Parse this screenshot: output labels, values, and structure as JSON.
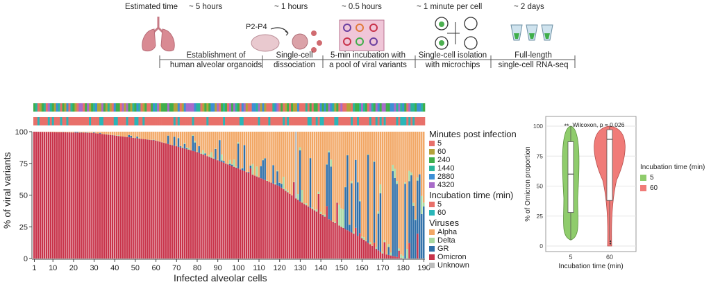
{
  "pipeline": {
    "steps": [
      {
        "time": "Estimated time",
        "label1": "",
        "label2": "",
        "icon": "lungs-icon"
      },
      {
        "time": "~ 5 hours",
        "label1": "Establishment of",
        "label2": "human alveolar organoids",
        "icon": ""
      },
      {
        "time": "~ 1 hours",
        "label1": "Single-cell",
        "label2": "dissociation",
        "icon": "cell-dish-icon",
        "extra": "P2-P4"
      },
      {
        "time": "~ 0.5 hours",
        "label1": "5-min incubation with",
        "label2": "a pool of viral variants",
        "icon": "virus-plate-icon"
      },
      {
        "time": "~ 1 minute per cell",
        "label1": "Single-cell isolation",
        "label2": "with microchips",
        "icon": "microchip-icon"
      },
      {
        "time": "~ 2 days",
        "label1": "Full-length",
        "label2": "single-cell RNA-seq",
        "icon": "tubes-icon"
      }
    ]
  },
  "chart_data": [
    {
      "type": "bar",
      "stacked": true,
      "title": "",
      "xlabel": "Infected alveolar cells",
      "ylabel": "% of viral variants",
      "n_cells": 190,
      "xticks": [
        "1",
        "10",
        "20",
        "30",
        "40",
        "50",
        "60",
        "70",
        "80",
        "90",
        "100",
        "110",
        "120",
        "130",
        "140",
        "150",
        "160",
        "170",
        "180",
        "190"
      ],
      "yticks": [
        "0",
        "25",
        "50",
        "75",
        "100"
      ],
      "ylim": [
        0,
        100
      ],
      "omicron_trend": [
        [
          1,
          100
        ],
        [
          30,
          99
        ],
        [
          40,
          97
        ],
        [
          60,
          93
        ],
        [
          80,
          84
        ],
        [
          100,
          71
        ],
        [
          120,
          57
        ],
        [
          130,
          45
        ],
        [
          140,
          35
        ],
        [
          150,
          25
        ],
        [
          160,
          16
        ],
        [
          165,
          10
        ],
        [
          170,
          4
        ],
        [
          180,
          0
        ],
        [
          190,
          0
        ]
      ],
      "legend": {
        "minutes_title": "Minutes post infection",
        "minutes": [
          {
            "label": "5",
            "color": "#e8706a"
          },
          {
            "label": "60",
            "color": "#b4a23a"
          },
          {
            "label": "240",
            "color": "#3fae4a"
          },
          {
            "label": "1440",
            "color": "#2ab59a"
          },
          {
            "label": "2880",
            "color": "#3d8fd6"
          },
          {
            "label": "4320",
            "color": "#a86bc9"
          }
        ],
        "incubation_title": "Incubation time (min)",
        "incubation": [
          {
            "label": "5",
            "color": "#e8706a"
          },
          {
            "label": "60",
            "color": "#2ab6b8"
          }
        ],
        "viruses_title": "Viruses",
        "viruses": [
          {
            "label": "Alpha",
            "color": "#f2a765"
          },
          {
            "label": "Delta",
            "color": "#a8d8a0"
          },
          {
            "label": "GR",
            "color": "#2f6fa8"
          },
          {
            "label": "Omicron",
            "color": "#c8334a"
          },
          {
            "label": "Unknown",
            "color": "#bdbdbd"
          }
        ]
      }
    },
    {
      "type": "violin",
      "title": "",
      "annotation": "Wilcoxon, p = 0.026",
      "significance": "**",
      "xlabel": "Incubation time (min)",
      "ylabel": "% of Omicron proportion",
      "categories": [
        "5",
        "60"
      ],
      "ylim": [
        0,
        100
      ],
      "yticks": [
        "0",
        "25",
        "50",
        "75",
        "100"
      ],
      "box": [
        {
          "q1": 28,
          "median": 60,
          "q3": 87,
          "min": 5,
          "max": 100
        },
        {
          "q1": 38,
          "median": 89,
          "q3": 97,
          "min": 5,
          "max": 100
        }
      ],
      "colors": [
        "#8fcc6c",
        "#f07b78"
      ],
      "legend_title": "Incubation time (min)",
      "legend": [
        {
          "label": "5",
          "color": "#8fcc6c"
        },
        {
          "label": "60",
          "color": "#f07b78"
        }
      ]
    }
  ]
}
